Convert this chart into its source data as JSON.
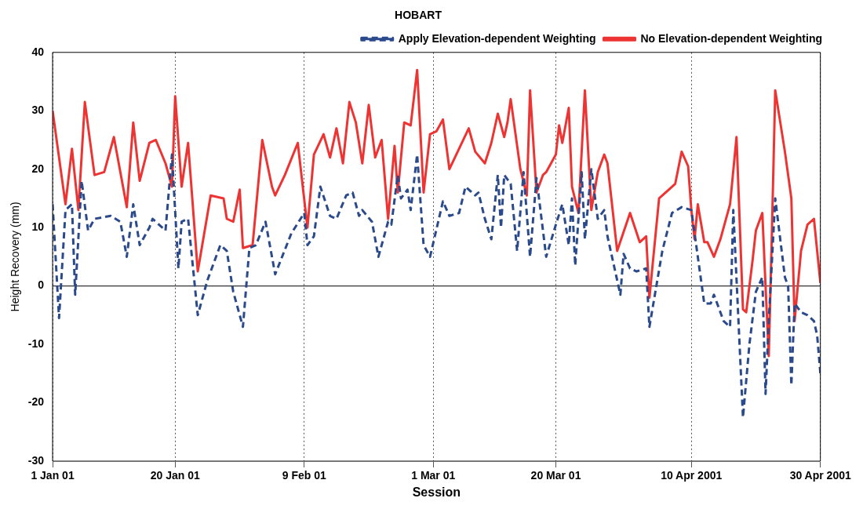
{
  "chart_data": {
    "type": "line",
    "title": "HOBART",
    "xlabel": "Session",
    "ylabel": "Height Recovery (mm)",
    "xlim": [
      "2001-01-01",
      "2001-04-30"
    ],
    "xticks": [
      {
        "value": "2001-01-01",
        "label": "1 Jan 01"
      },
      {
        "value": "2001-01-20",
        "label": "20 Jan 01"
      },
      {
        "value": "2001-02-09",
        "label": "9 Feb 01"
      },
      {
        "value": "2001-03-01",
        "label": "1 Mar 01"
      },
      {
        "value": "2001-03-20",
        "label": "20 Mar 01"
      },
      {
        "value": "2001-04-10",
        "label": "10 Apr 2001"
      },
      {
        "value": "2001-04-30",
        "label": "30 Apr 2001"
      }
    ],
    "ylim": [
      -30,
      40
    ],
    "yticks": [
      -30,
      -20,
      -10,
      0,
      10,
      20,
      30,
      40
    ],
    "grid": "x",
    "legend": "top right",
    "marker": "none",
    "ref_lines": [
      {
        "axis": "y",
        "value": 0,
        "color": "#333333"
      }
    ],
    "series": [
      {
        "name": "Apply Elevation-dependent Weighting",
        "color": "#2b4a8b",
        "line_style": "dashed",
        "x": [
          "2001-01-01",
          "2001-01-02",
          "2001-01-03",
          "2001-01-04",
          "2001-01-04T12:00",
          "2001-01-05T12:00",
          "2001-01-06T12:00",
          "2001-01-07T12:00",
          "2001-01-10",
          "2001-01-11T12:00",
          "2001-01-12T12:00",
          "2001-01-13T12:00",
          "2001-01-14T12:00",
          "2001-01-16",
          "2001-01-16T12:00",
          "2001-01-18T12:00",
          "2001-01-19T12:00",
          "2001-01-20T12:00",
          "2001-01-21",
          "2001-01-22",
          "2001-01-23T12:00",
          "2001-01-25",
          "2001-01-27",
          "2001-01-28",
          "2001-01-29",
          "2001-01-30T12:00",
          "2001-01-31T12:00",
          "2001-02-01T12:00",
          "2001-02-03",
          "2001-02-04T12:00",
          "2001-02-07",
          "2001-02-09",
          "2001-02-09T12:00",
          "2001-02-10T12:00",
          "2001-02-11T12:00",
          "2001-02-13",
          "2001-02-14",
          "2001-02-15T12:00",
          "2001-02-16T12:00",
          "2001-02-17T12:00",
          "2001-02-18",
          "2001-02-19T12:00",
          "2001-02-20T12:00",
          "2001-02-22",
          "2001-02-22T12:00",
          "2001-02-23T12:00",
          "2001-02-24",
          "2001-02-25",
          "2001-02-25T12:00",
          "2001-02-26T12:00",
          "2001-02-27T12:00",
          "2001-02-28T12:00",
          "2001-03-02T12:00",
          "2001-03-03T12:00",
          "2001-03-05",
          "2001-03-06",
          "2001-03-07T12:00",
          "2001-03-08",
          "2001-03-09",
          "2001-03-10",
          "2001-03-11",
          "2001-03-11T12:00",
          "2001-03-12",
          "2001-03-13",
          "2001-03-14",
          "2001-03-15",
          "2001-03-16",
          "2001-03-17",
          "2001-03-18T12:00",
          "2001-03-20",
          "2001-03-21",
          "2001-03-22",
          "2001-03-22T12:00",
          "2001-03-23",
          "2001-03-24",
          "2001-03-24T12:00",
          "2001-03-25T12:00",
          "2001-03-26T12:00",
          "2001-03-27T12:00",
          "2001-03-28",
          "2001-03-29T12:00",
          "2001-03-30",
          "2001-03-30T12:00",
          "2001-03-31T12:00",
          "2001-04-01T12:00",
          "2001-04-03",
          "2001-04-03T12:00",
          "2001-04-05T12:00",
          "2001-04-07",
          "2001-04-08T12:00",
          "2001-04-10",
          "2001-04-11",
          "2001-04-12",
          "2001-04-13",
          "2001-04-13T12:00",
          "2001-04-15",
          "2001-04-16",
          "2001-04-16T12:00",
          "2001-04-18",
          "2001-04-19",
          "2001-04-20",
          "2001-04-21",
          "2001-04-21T12:00",
          "2001-04-22",
          "2001-04-23",
          "2001-04-24T12:00",
          "2001-04-25",
          "2001-04-25T12:00",
          "2001-04-26",
          "2001-04-27",
          "2001-04-28",
          "2001-04-29",
          "2001-04-29T12:00",
          "2001-04-30"
        ],
        "values": [
          14,
          -5.5,
          13,
          14,
          -1.5,
          18,
          9.5,
          11.5,
          12,
          11,
          5,
          14,
          7,
          10,
          11.5,
          9.5,
          22.5,
          3,
          11,
          11.5,
          -5,
          1,
          7,
          6,
          -1,
          -7,
          6.5,
          7,
          11,
          2,
          9,
          12.5,
          7,
          8.5,
          17,
          12,
          11.5,
          15.5,
          16,
          12,
          13,
          11,
          5,
          11,
          10.5,
          19,
          15,
          16.5,
          13,
          22.5,
          7,
          5,
          14.5,
          12,
          12.5,
          17,
          15.5,
          16,
          11.5,
          8,
          19,
          10,
          19,
          17.5,
          6,
          19.5,
          5,
          18.5,
          5,
          10.5,
          14,
          7,
          15,
          3.5,
          19.5,
          8,
          20,
          11.5,
          13,
          8.5,
          1,
          -1.5,
          5.5,
          3,
          2.5,
          3,
          -7,
          6,
          12.5,
          13.5,
          13,
          5,
          -3,
          -3,
          -1.5,
          -6,
          -7,
          13,
          -22.5,
          -10,
          -1,
          1.5,
          -18.5,
          -6,
          15,
          1.5,
          0,
          -17,
          -3,
          -4.5,
          -5,
          -6,
          -8.5,
          -15
        ]
      },
      {
        "name": "No Elevation-dependent Weighting",
        "color": "#ee3333",
        "line_style": "solid",
        "x": [
          "2001-01-01",
          "2001-01-03",
          "2001-01-04",
          "2001-01-05",
          "2001-01-06",
          "2001-01-07T12:00",
          "2001-01-09",
          "2001-01-10T12:00",
          "2001-01-12T12:00",
          "2001-01-13T12:00",
          "2001-01-14T12:00",
          "2001-01-16",
          "2001-01-17",
          "2001-01-18T12:00",
          "2001-01-19T12:00",
          "2001-01-20",
          "2001-01-21",
          "2001-01-22",
          "2001-01-23T12:00",
          "2001-01-25T12:00",
          "2001-01-27T12:00",
          "2001-01-28",
          "2001-01-29",
          "2001-01-30",
          "2001-01-30T12:00",
          "2001-02-01",
          "2001-02-02T12:00",
          "2001-02-04",
          "2001-02-04T12:00",
          "2001-02-06",
          "2001-02-08",
          "2001-02-09T12:00",
          "2001-02-10T12:00",
          "2001-02-12",
          "2001-02-13",
          "2001-02-14",
          "2001-02-15",
          "2001-02-16",
          "2001-02-17",
          "2001-02-18",
          "2001-02-19",
          "2001-02-20",
          "2001-02-21",
          "2001-02-22",
          "2001-02-23",
          "2001-02-23T12:00",
          "2001-02-24T12:00",
          "2001-02-25T12:00",
          "2001-02-26T12:00",
          "2001-02-27T12:00",
          "2001-02-28T12:00",
          "2001-03-01T12:00",
          "2001-03-02T12:00",
          "2001-03-03T12:00",
          "2001-03-05",
          "2001-03-06T12:00",
          "2001-03-07T12:00",
          "2001-03-09",
          "2001-03-10",
          "2001-03-11",
          "2001-03-12",
          "2001-03-12T12:00",
          "2001-03-13",
          "2001-03-14T12:00",
          "2001-03-15T12:00",
          "2001-03-16",
          "2001-03-17",
          "2001-03-18",
          "2001-03-18T12:00",
          "2001-03-20",
          "2001-03-20T12:00",
          "2001-03-21",
          "2001-03-22",
          "2001-03-22T12:00",
          "2001-03-23T12:00",
          "2001-03-24T12:00",
          "2001-03-25T12:00",
          "2001-03-26T12:00",
          "2001-03-27T12:00",
          "2001-03-28",
          "2001-03-29T12:00",
          "2001-03-31T12:00",
          "2001-04-02",
          "2001-04-03",
          "2001-04-03T12:00",
          "2001-04-05",
          "2001-04-06T12:00",
          "2001-04-07T12:00",
          "2001-04-08T12:00",
          "2001-04-09T12:00",
          "2001-04-10",
          "2001-04-10T12:00",
          "2001-04-11",
          "2001-04-12",
          "2001-04-12T12:00",
          "2001-04-13T12:00",
          "2001-04-14T12:00",
          "2001-04-16",
          "2001-04-17",
          "2001-04-18",
          "2001-04-18T12:00",
          "2001-04-19T12:00",
          "2001-04-20",
          "2001-04-21",
          "2001-04-21T12:00",
          "2001-04-22",
          "2001-04-22T12:00",
          "2001-04-23",
          "2001-04-24T12:00",
          "2001-04-25T12:00",
          "2001-04-26",
          "2001-04-27",
          "2001-04-28",
          "2001-04-29",
          "2001-04-30"
        ],
        "values": [
          30,
          14,
          23.5,
          13,
          31.5,
          19,
          19.5,
          25.5,
          13.5,
          28,
          18,
          24.5,
          25,
          21,
          17,
          32.5,
          17,
          24.5,
          2.5,
          15.5,
          15,
          11.5,
          11,
          16.5,
          6.5,
          7,
          25,
          17,
          15.5,
          19,
          24.5,
          10,
          22.5,
          26,
          22,
          27,
          21,
          31.5,
          28,
          21,
          31,
          22,
          25,
          11.5,
          24,
          16,
          28,
          27.5,
          37,
          16,
          26,
          26.5,
          28.5,
          20,
          23.5,
          27,
          23,
          21,
          24.5,
          29.5,
          25.5,
          28,
          32,
          20,
          15.5,
          33.5,
          16,
          19,
          19.5,
          22.5,
          27.5,
          24.5,
          30.5,
          17,
          12.5,
          33.5,
          13,
          19.5,
          22.5,
          21,
          6,
          12.5,
          7.5,
          8.5,
          -2,
          15,
          16.5,
          17.5,
          23,
          20.5,
          13,
          8,
          14,
          7.5,
          7.5,
          5,
          8,
          14,
          25.5,
          -4,
          -4.5,
          4.5,
          9.5,
          12.5,
          0,
          -12,
          10,
          33.5,
          23,
          15,
          -6,
          6,
          10.5,
          11.5,
          0.5
        ]
      }
    ]
  }
}
